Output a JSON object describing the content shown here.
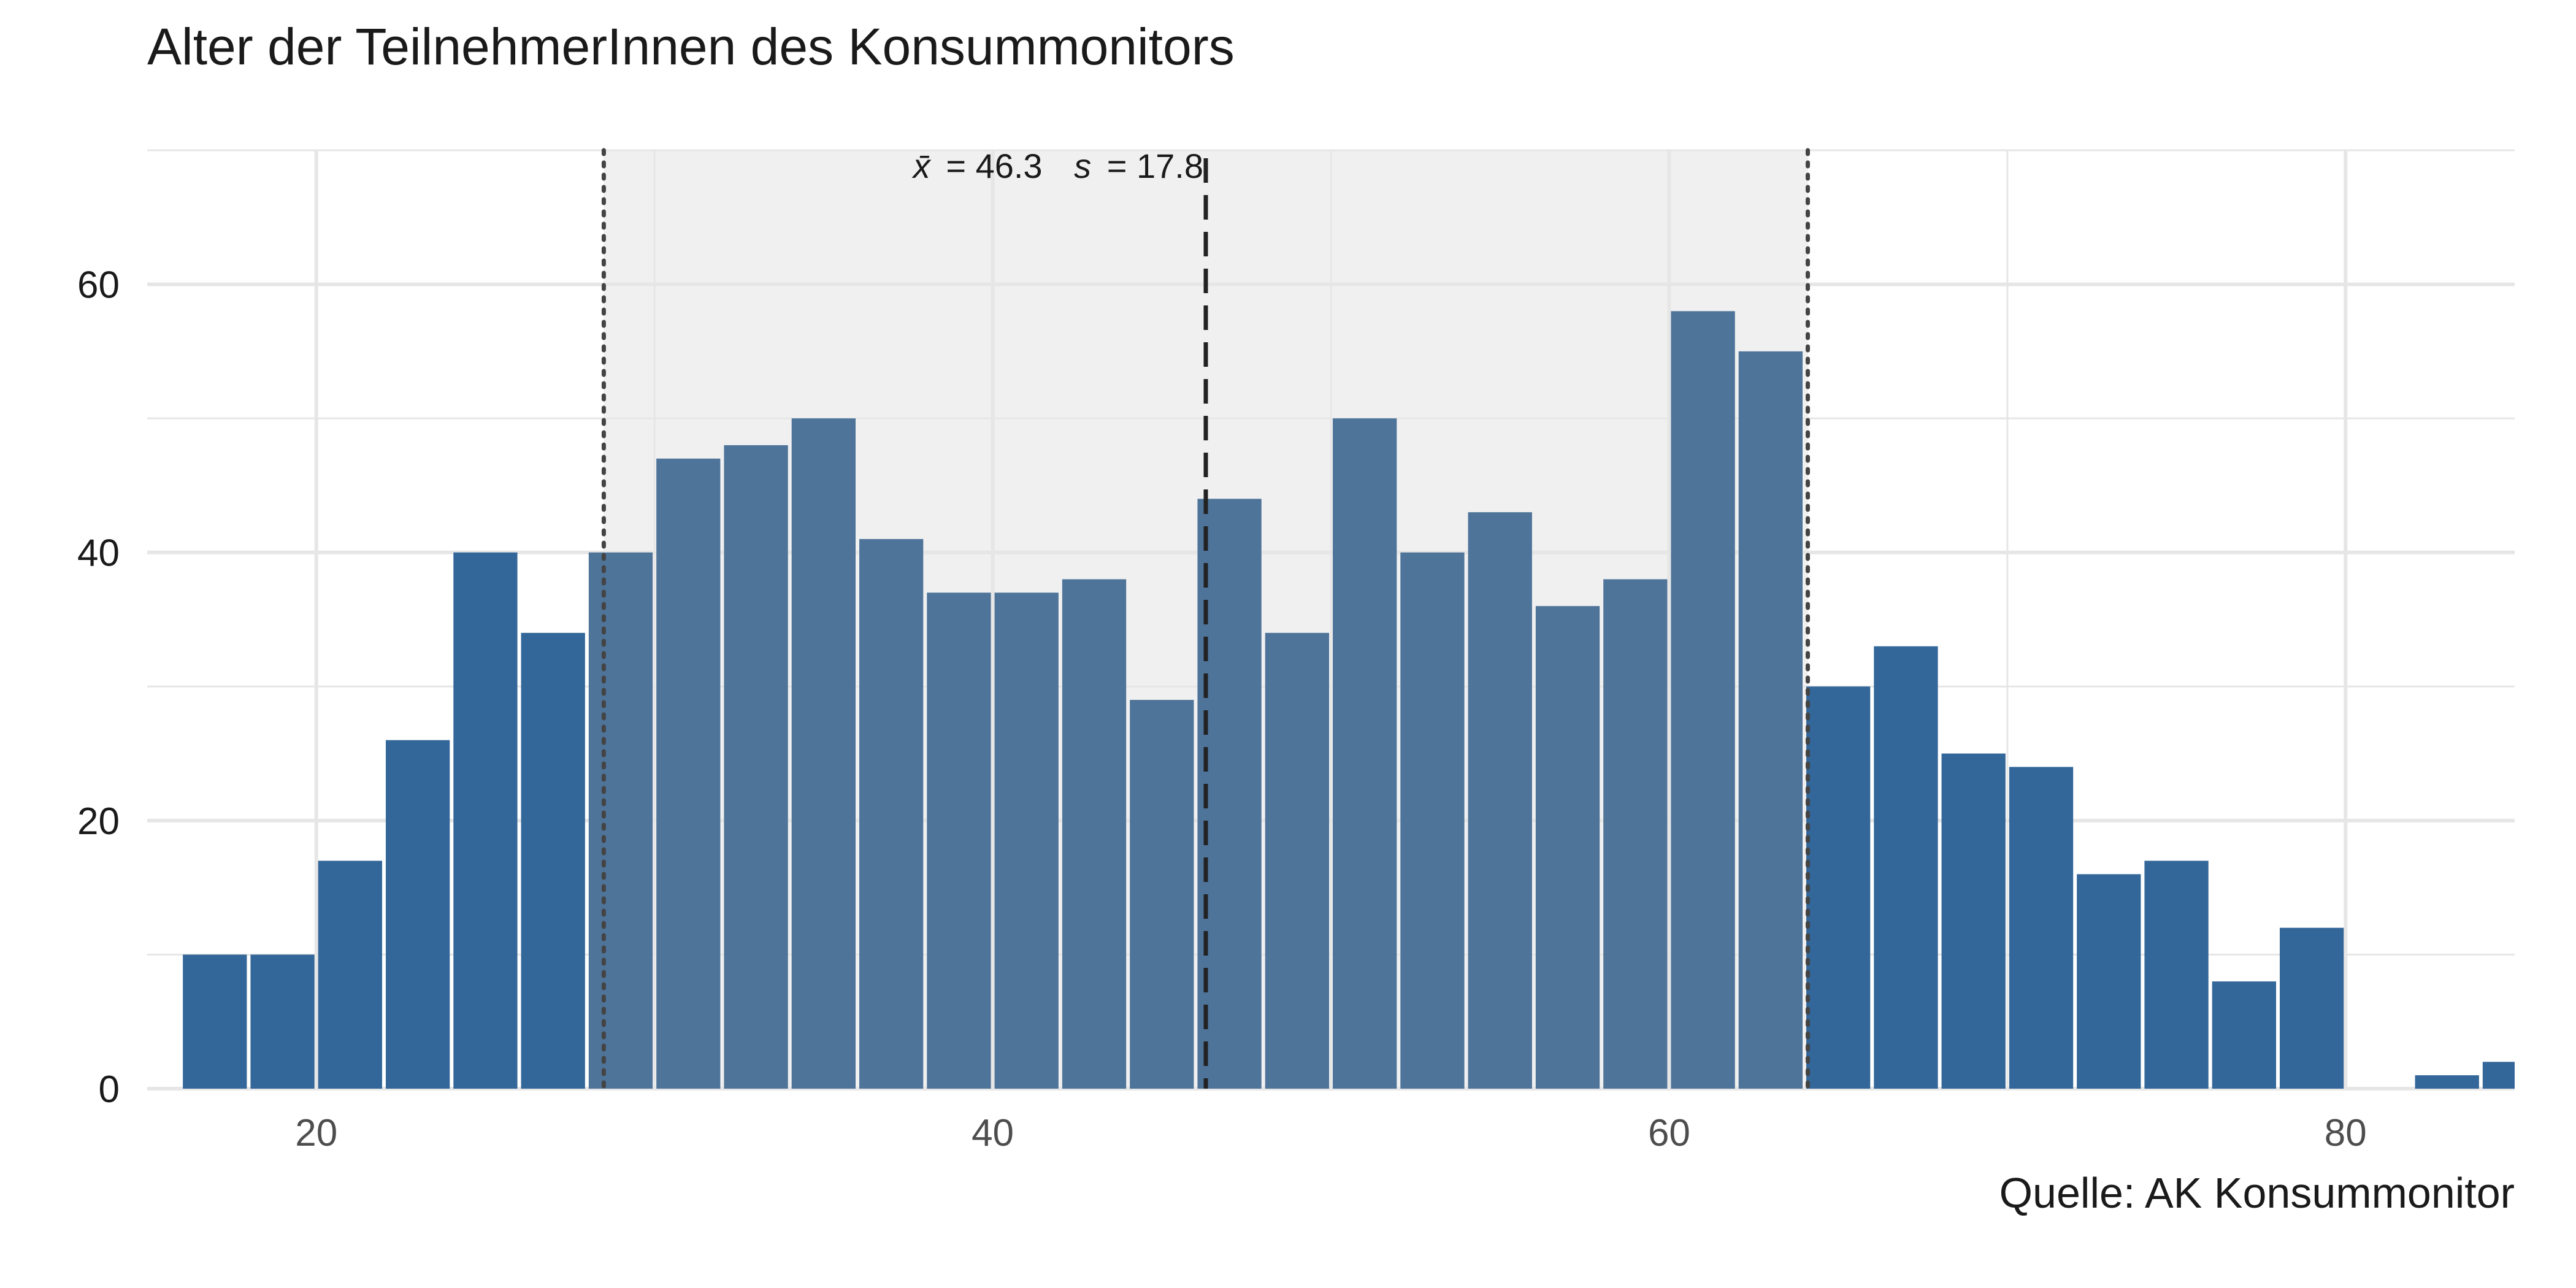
{
  "chart_data": {
    "type": "bar",
    "title": "Alter der TeilnehmerInnen des Konsummonitors",
    "caption": "Quelle: AK Konsummonitor",
    "xlabel": "",
    "ylabel": "",
    "xlim": [
      15,
      85
    ],
    "ylim": [
      0,
      70
    ],
    "bin_width": 2,
    "x_ticks": [
      20,
      40,
      60,
      80
    ],
    "y_ticks": [
      0,
      20,
      40,
      60
    ],
    "grid": true,
    "bins": [
      {
        "center": 17,
        "count": 10
      },
      {
        "center": 19,
        "count": 10
      },
      {
        "center": 21,
        "count": 17
      },
      {
        "center": 23,
        "count": 26
      },
      {
        "center": 25,
        "count": 40
      },
      {
        "center": 27,
        "count": 34
      },
      {
        "center": 29,
        "count": 40
      },
      {
        "center": 31,
        "count": 47
      },
      {
        "center": 33,
        "count": 48
      },
      {
        "center": 35,
        "count": 50
      },
      {
        "center": 37,
        "count": 41
      },
      {
        "center": 39,
        "count": 37
      },
      {
        "center": 41,
        "count": 37
      },
      {
        "center": 43,
        "count": 38
      },
      {
        "center": 45,
        "count": 29
      },
      {
        "center": 47,
        "count": 44
      },
      {
        "center": 49,
        "count": 34
      },
      {
        "center": 51,
        "count": 50
      },
      {
        "center": 53,
        "count": 40
      },
      {
        "center": 55,
        "count": 43
      },
      {
        "center": 57,
        "count": 36
      },
      {
        "center": 59,
        "count": 38
      },
      {
        "center": 61,
        "count": 58
      },
      {
        "center": 63,
        "count": 55
      },
      {
        "center": 65,
        "count": 30
      },
      {
        "center": 67,
        "count": 33
      },
      {
        "center": 69,
        "count": 25
      },
      {
        "center": 71,
        "count": 24
      },
      {
        "center": 73,
        "count": 16
      },
      {
        "center": 75,
        "count": 17
      },
      {
        "center": 77,
        "count": 8
      },
      {
        "center": 79,
        "count": 12
      },
      {
        "center": 81,
        "count": 0
      },
      {
        "center": 83,
        "count": 1
      },
      {
        "center": 85,
        "count": 2
      }
    ],
    "mean": 46.3,
    "sd": 17.8,
    "sd_band": [
      28.5,
      64.1
    ],
    "annotation": {
      "mean_symbol": "x̄",
      "mean_text": "= 46.3",
      "sd_symbol": "s",
      "sd_text": "= 17.8"
    },
    "colors": {
      "bar": "#336699",
      "bar_in_band": "#4f7499",
      "band": "#f0f0f1",
      "grid": "#e6e6e6",
      "mean_line": "#222222",
      "sd_line": "#444444",
      "tick_text": "#4d4d4d"
    }
  }
}
